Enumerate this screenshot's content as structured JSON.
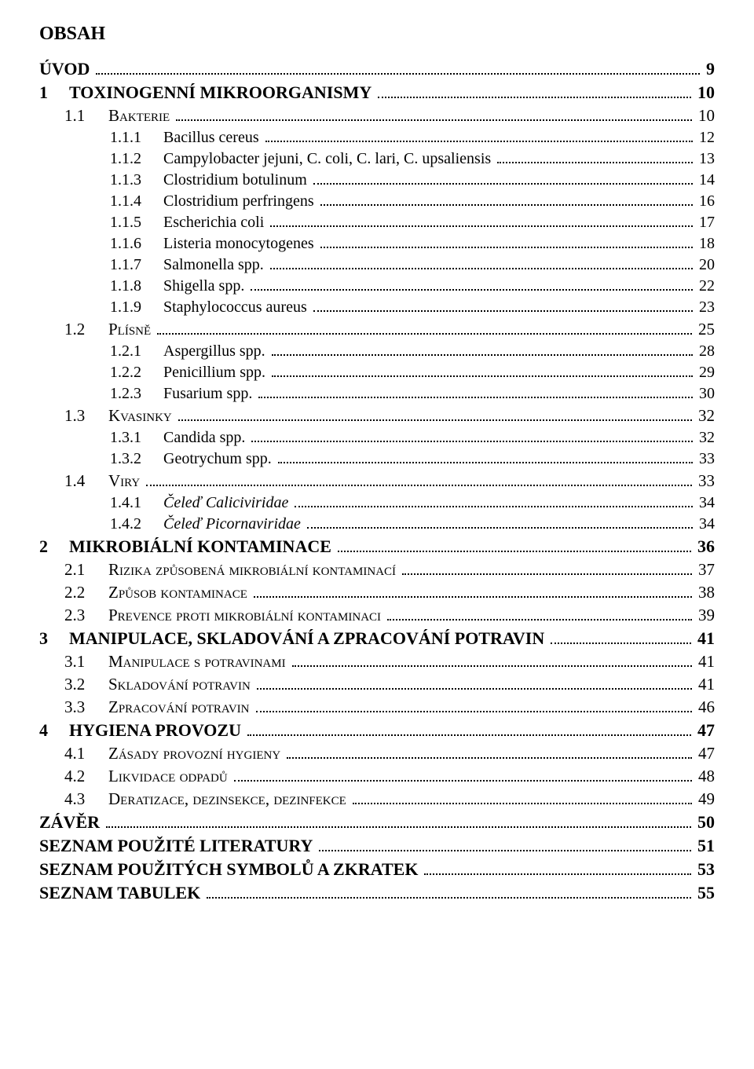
{
  "title": "OBSAH",
  "toc": [
    {
      "level": 0,
      "num": "",
      "label": "ÚVOD",
      "page": "9"
    },
    {
      "level": 1,
      "num": "1",
      "label": "TOXINOGENNÍ MIKROORGANISMY",
      "page": "10"
    },
    {
      "level": 2,
      "num": "1.1",
      "label": "Bakterie",
      "page": "10",
      "smallcaps": true
    },
    {
      "level": 3,
      "num": "1.1.1",
      "label": "Bacillus cereus",
      "page": "12"
    },
    {
      "level": 3,
      "num": "1.1.2",
      "label": "Campylobacter jejuni, C. coli, C. lari, C. upsaliensis",
      "page": "13"
    },
    {
      "level": 3,
      "num": "1.1.3",
      "label": "Clostridium botulinum",
      "page": "14"
    },
    {
      "level": 3,
      "num": "1.1.4",
      "label": "Clostridium perfringens",
      "page": "16"
    },
    {
      "level": 3,
      "num": "1.1.5",
      "label": "Escherichia coli",
      "page": "17"
    },
    {
      "level": 3,
      "num": "1.1.6",
      "label": "Listeria monocytogenes",
      "page": "18"
    },
    {
      "level": 3,
      "num": "1.1.7",
      "label": "Salmonella spp.",
      "page": "20"
    },
    {
      "level": 3,
      "num": "1.1.8",
      "label": "Shigella spp.",
      "page": "22"
    },
    {
      "level": 3,
      "num": "1.1.9",
      "label": "Staphylococcus aureus",
      "page": "23"
    },
    {
      "level": 2,
      "num": "1.2",
      "label": "Plísně",
      "page": "25",
      "smallcaps": true
    },
    {
      "level": 3,
      "num": "1.2.1",
      "label": "Aspergillus spp.",
      "page": "28"
    },
    {
      "level": 3,
      "num": "1.2.2",
      "label": "Penicillium spp.",
      "page": "29"
    },
    {
      "level": 3,
      "num": "1.2.3",
      "label": "Fusarium spp.",
      "page": "30"
    },
    {
      "level": 2,
      "num": "1.3",
      "label": "Kvasinky",
      "page": "32",
      "smallcaps": true
    },
    {
      "level": 3,
      "num": "1.3.1",
      "label": "Candida spp.",
      "page": "32"
    },
    {
      "level": 3,
      "num": "1.3.2",
      "label": "Geotrychum spp.",
      "page": "33"
    },
    {
      "level": 2,
      "num": "1.4",
      "label": "Viry",
      "page": "33",
      "smallcaps": true
    },
    {
      "level": 3,
      "num": "1.4.1",
      "label": "Čeleď Caliciviridae",
      "page": "34",
      "italic": true
    },
    {
      "level": 3,
      "num": "1.4.2",
      "label": "Čeleď Picornaviridae",
      "page": "34",
      "italic": true
    },
    {
      "level": 1,
      "num": "2",
      "label": "MIKROBIÁLNÍ KONTAMINACE",
      "page": "36"
    },
    {
      "level": 2,
      "num": "2.1",
      "label": "Rizika způsobená mikrobiální kontaminací",
      "page": "37",
      "smallcaps": true
    },
    {
      "level": 2,
      "num": "2.2",
      "label": "Způsob kontaminace",
      "page": "38",
      "smallcaps": true
    },
    {
      "level": 2,
      "num": "2.3",
      "label": "Prevence proti mikrobiální kontaminaci",
      "page": "39",
      "smallcaps": true
    },
    {
      "level": 1,
      "num": "3",
      "label": "MANIPULACE, SKLADOVÁNÍ A ZPRACOVÁNÍ POTRAVIN",
      "page": "41"
    },
    {
      "level": 2,
      "num": "3.1",
      "label": "Manipulace s potravinami",
      "page": "41",
      "smallcaps": true
    },
    {
      "level": 2,
      "num": "3.2",
      "label": "Skladování potravin",
      "page": "41",
      "smallcaps": true
    },
    {
      "level": 2,
      "num": "3.3",
      "label": "Zpracování potravin",
      "page": "46",
      "smallcaps": true
    },
    {
      "level": 1,
      "num": "4",
      "label": "HYGIENA PROVOZU",
      "page": "47"
    },
    {
      "level": 2,
      "num": "4.1",
      "label": "Zásady provozní hygieny",
      "page": "47",
      "smallcaps": true
    },
    {
      "level": 2,
      "num": "4.2",
      "label": "Likvidace odpadů",
      "page": "48",
      "smallcaps": true
    },
    {
      "level": 2,
      "num": "4.3",
      "label": "Deratizace, dezinsekce, dezinfekce",
      "page": "49",
      "smallcaps": true
    },
    {
      "level": 0,
      "num": "",
      "label": "ZÁVĚR",
      "page": "50"
    },
    {
      "level": 0,
      "num": "",
      "label": "SEZNAM POUŽITÉ LITERATURY",
      "page": "51"
    },
    {
      "level": 0,
      "num": "",
      "label": "SEZNAM POUŽITÝCH SYMBOLŮ A ZKRATEK",
      "page": "53"
    },
    {
      "level": 0,
      "num": "",
      "label": "SEZNAM TABULEK",
      "page": "55"
    }
  ]
}
